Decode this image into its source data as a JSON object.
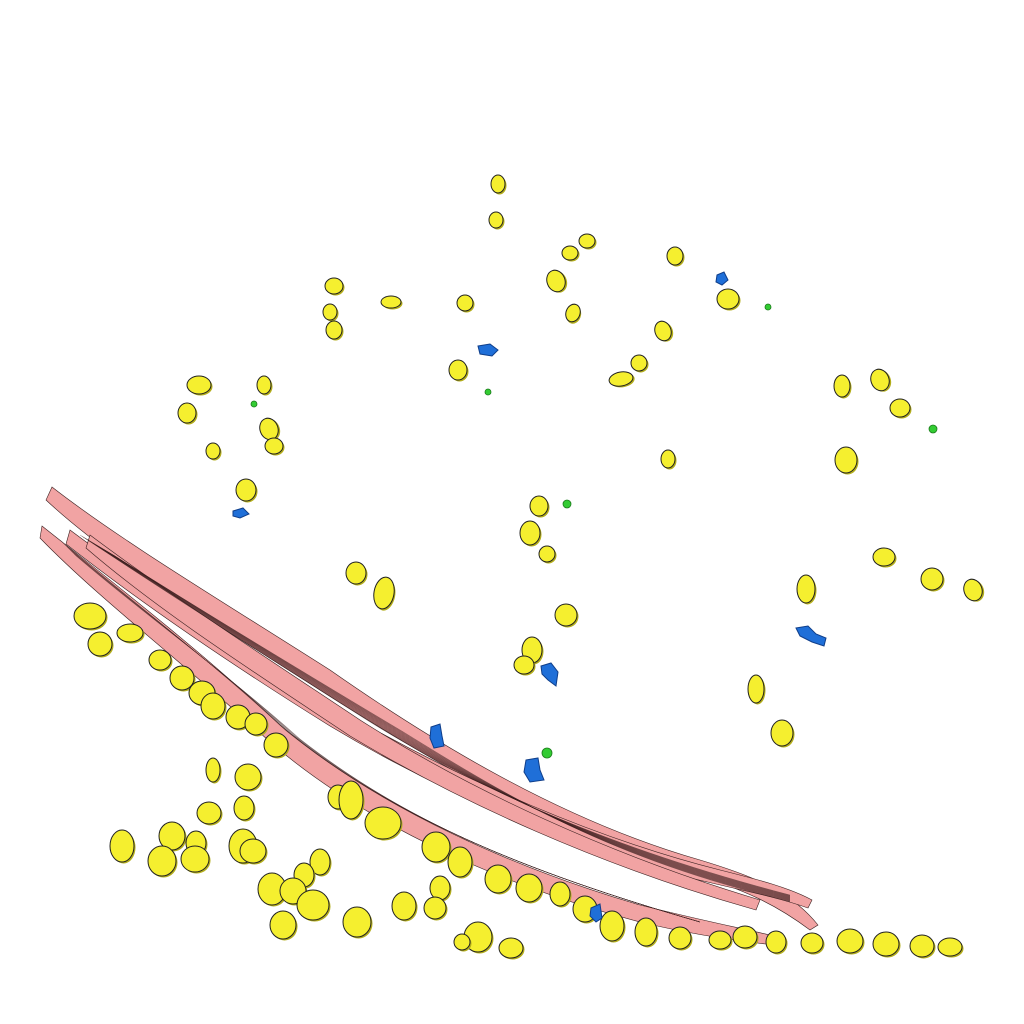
{
  "colors": {
    "background": "#ffffff",
    "yellow": "#f5ef2f",
    "yellow_shadow": "#b3ad1a",
    "pink": "#f1a3a3",
    "pink_dark": "#3b1e1e",
    "blue": "#1f6fd8",
    "green": "#33cc33",
    "outline": "#222222"
  },
  "legend": {
    "yellow": "cell-body",
    "blue": "blob-blue",
    "green": "dot-green",
    "pink": "fiber-band"
  }
}
